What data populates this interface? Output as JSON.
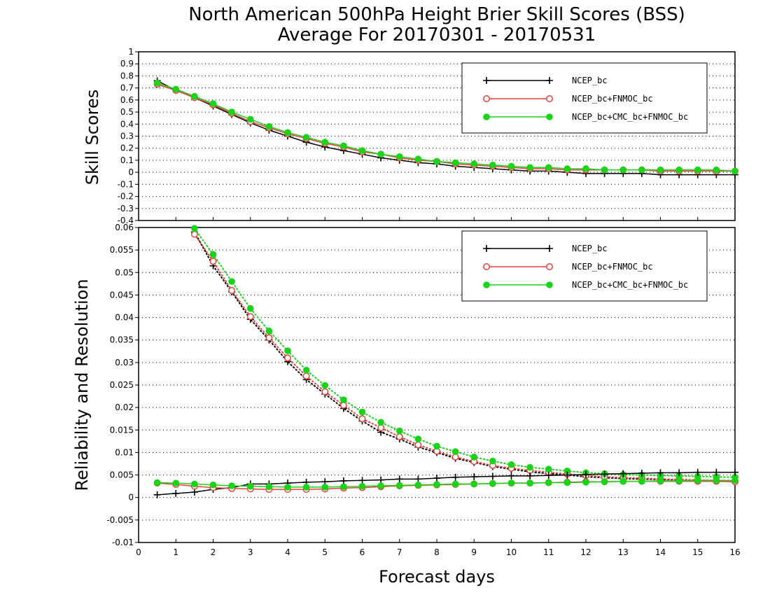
{
  "title_line1": "North American 500hPa Height Brier Skill Scores (BSS)",
  "title_line2": "Average For 20170301 - 20170531",
  "xlabel": "Forecast days",
  "colors": {
    "NCEP_bc": "#000000",
    "NCEP_bc+FNMOC_bc": "#e8413a",
    "NCEP_bc+CMC_bc+FNMOC_bc": "#17d417"
  },
  "x_ticks": [
    "0",
    "1",
    "2",
    "3",
    "4",
    "5",
    "6",
    "7",
    "8",
    "9",
    "10",
    "11",
    "12",
    "13",
    "14",
    "15",
    "16"
  ],
  "chart_data": [
    {
      "type": "line",
      "ylabel": "Skill Scores",
      "xlim": [
        0,
        16
      ],
      "ylim": [
        -0.4,
        1
      ],
      "y_ticks": [
        "1",
        "0.9",
        "0.8",
        "0.7",
        "0.6",
        "0.5",
        "0.4",
        "0.3",
        "0.2",
        "0.1",
        "0",
        "-0.1",
        "-0.2",
        "-0.3",
        "-0.4"
      ],
      "grid": true,
      "legend_position": "top-right",
      "x": [
        0.5,
        1,
        1.5,
        2,
        2.5,
        3,
        3.5,
        4,
        4.5,
        5,
        5.5,
        6,
        6.5,
        7,
        7.5,
        8,
        8.5,
        9,
        9.5,
        10,
        10.5,
        11,
        11.5,
        12,
        12.5,
        13,
        13.5,
        14,
        14.5,
        15,
        15.5,
        16
      ],
      "series": [
        {
          "name": "NCEP_bc",
          "color_key": "NCEP_bc",
          "marker": "plus",
          "style": "solid",
          "values": [
            0.76,
            0.68,
            0.62,
            0.55,
            0.48,
            0.41,
            0.35,
            0.3,
            0.25,
            0.21,
            0.18,
            0.15,
            0.12,
            0.1,
            0.08,
            0.07,
            0.05,
            0.04,
            0.03,
            0.02,
            0.01,
            0.01,
            0.0,
            -0.01,
            -0.01,
            -0.01,
            -0.01,
            -0.02,
            -0.02,
            -0.02,
            -0.02,
            -0.02
          ]
        },
        {
          "name": "NCEP_bc+FNMOC_bc",
          "color_key": "NCEP_bc+FNMOC_bc",
          "marker": "open-circle",
          "style": "solid",
          "values": [
            0.73,
            0.68,
            0.62,
            0.56,
            0.49,
            0.42,
            0.37,
            0.32,
            0.28,
            0.24,
            0.21,
            0.17,
            0.15,
            0.12,
            0.1,
            0.09,
            0.07,
            0.06,
            0.05,
            0.04,
            0.03,
            0.03,
            0.02,
            0.02,
            0.02,
            0.02,
            0.02,
            0.01,
            0.01,
            0.01,
            0.01,
            0.01
          ]
        },
        {
          "name": "NCEP_bc+CMC_bc+FNMOC_bc",
          "color_key": "NCEP_bc+CMC_bc+FNMOC_bc",
          "marker": "filled-circle",
          "style": "solid",
          "values": [
            0.74,
            0.69,
            0.63,
            0.57,
            0.5,
            0.44,
            0.38,
            0.33,
            0.29,
            0.25,
            0.22,
            0.18,
            0.15,
            0.13,
            0.11,
            0.09,
            0.08,
            0.07,
            0.06,
            0.05,
            0.04,
            0.04,
            0.03,
            0.03,
            0.02,
            0.02,
            0.02,
            0.02,
            0.02,
            0.02,
            0.02,
            0.01
          ]
        }
      ]
    },
    {
      "type": "line",
      "ylabel": "Reliability and Resolution",
      "xlim": [
        0,
        16
      ],
      "ylim": [
        -0.01,
        0.06
      ],
      "y_ticks": [
        "0.06",
        "0.055",
        "0.05",
        "0.045",
        "0.04",
        "0.035",
        "0.03",
        "0.025",
        "0.02",
        "0.015",
        "0.01",
        "0.005",
        "0",
        "-0.005",
        "-0.01"
      ],
      "grid": true,
      "legend_position": "top-right",
      "x": [
        0.5,
        1,
        1.5,
        2,
        2.5,
        3,
        3.5,
        4,
        4.5,
        5,
        5.5,
        6,
        6.5,
        7,
        7.5,
        8,
        8.5,
        9,
        9.5,
        10,
        10.5,
        11,
        11.5,
        12,
        12.5,
        13,
        13.5,
        14,
        14.5,
        15,
        15.5,
        16
      ],
      "series": [
        {
          "name": "NCEP_bc",
          "color_key": "NCEP_bc",
          "marker": "plus",
          "style": "dotted",
          "values": [
            null,
            null,
            0.059,
            0.0515,
            0.0457,
            0.0396,
            0.035,
            0.0302,
            0.0262,
            0.023,
            0.0198,
            0.017,
            0.0145,
            0.013,
            0.0112,
            0.01,
            0.0087,
            0.0078,
            0.0069,
            0.0063,
            0.0057,
            0.0053,
            0.005,
            0.0046,
            0.0044,
            0.0042,
            0.0041,
            0.004,
            0.0039,
            0.0038,
            0.0037,
            0.0036
          ]
        },
        {
          "name": "NCEP_bc+FNMOC_bc",
          "color_key": "NCEP_bc+FNMOC_bc",
          "marker": "open-circle",
          "style": "dotted",
          "values": [
            null,
            null,
            0.0585,
            0.0525,
            0.046,
            0.0402,
            0.0355,
            0.031,
            0.027,
            0.0235,
            0.0205,
            0.0175,
            0.0155,
            0.0135,
            0.0117,
            0.0103,
            0.009,
            0.008,
            0.0071,
            0.0065,
            0.006,
            0.0056,
            0.0052,
            0.0049,
            0.0046,
            0.0044,
            0.0043,
            0.0041,
            0.004,
            0.0039,
            0.0038,
            0.0037
          ]
        },
        {
          "name": "NCEP_bc+CMC_bc+FNMOC_bc",
          "color_key": "NCEP_bc+CMC_bc+FNMOC_bc",
          "marker": "filled-circle",
          "style": "dotted",
          "values": [
            null,
            null,
            0.0598,
            0.054,
            0.048,
            0.042,
            0.037,
            0.0326,
            0.0283,
            0.0249,
            0.0217,
            0.019,
            0.0167,
            0.0148,
            0.013,
            0.0114,
            0.0102,
            0.009,
            0.0081,
            0.0073,
            0.0067,
            0.0063,
            0.0059,
            0.0055,
            0.0053,
            0.0051,
            0.005,
            0.0049,
            0.0048,
            0.0047,
            0.0046,
            0.0045
          ]
        },
        {
          "name": "NCEP_bc",
          "color_key": "NCEP_bc",
          "marker": "plus",
          "style": "solid",
          "values": [
            0.0006,
            0.0009,
            0.0012,
            0.0018,
            0.0022,
            0.003,
            0.003,
            0.0032,
            0.0034,
            0.0035,
            0.0037,
            0.0038,
            0.0039,
            0.0041,
            0.0041,
            0.0043,
            0.0045,
            0.0046,
            0.0047,
            0.0048,
            0.0048,
            0.0049,
            0.005,
            0.0051,
            0.0052,
            0.0053,
            0.0054,
            0.0055,
            0.0055,
            0.0056,
            0.0056,
            0.0056
          ]
        },
        {
          "name": "NCEP_bc+FNMOC_bc",
          "color_key": "NCEP_bc+FNMOC_bc",
          "marker": "open-circle",
          "style": "solid",
          "values": [
            0.0032,
            0.0029,
            0.0025,
            0.0022,
            0.002,
            0.0019,
            0.0018,
            0.0018,
            0.0018,
            0.0019,
            0.0021,
            0.0022,
            0.0024,
            0.0026,
            0.0027,
            0.0028,
            0.0029,
            0.003,
            0.0031,
            0.0032,
            0.0032,
            0.0033,
            0.0034,
            0.0035,
            0.0035,
            0.0036,
            0.0036,
            0.0036,
            0.0036,
            0.0036,
            0.0036,
            0.0035
          ]
        },
        {
          "name": "NCEP_bc+CMC_bc+FNMOC_bc",
          "color_key": "NCEP_bc+CMC_bc+FNMOC_bc",
          "marker": "filled-circle",
          "style": "solid",
          "values": [
            0.0033,
            0.0032,
            0.003,
            0.0028,
            0.0026,
            0.0025,
            0.0024,
            0.0023,
            0.0023,
            0.0023,
            0.0024,
            0.0025,
            0.0026,
            0.0027,
            0.0028,
            0.0029,
            0.003,
            0.003,
            0.0031,
            0.0032,
            0.0032,
            0.0033,
            0.0033,
            0.0034,
            0.0035,
            0.0036,
            0.0036,
            0.0037,
            0.0037,
            0.0038,
            0.0038,
            0.0038
          ]
        }
      ]
    }
  ],
  "legend": [
    {
      "label": "NCEP_bc",
      "color_key": "NCEP_bc",
      "marker": "plus"
    },
    {
      "label": "NCEP_bc+FNMOC_bc",
      "color_key": "NCEP_bc+FNMOC_bc",
      "marker": "open-circle"
    },
    {
      "label": "NCEP_bc+CMC_bc+FNMOC_bc",
      "color_key": "NCEP_bc+CMC_bc+FNMOC_bc",
      "marker": "filled-circle"
    }
  ]
}
